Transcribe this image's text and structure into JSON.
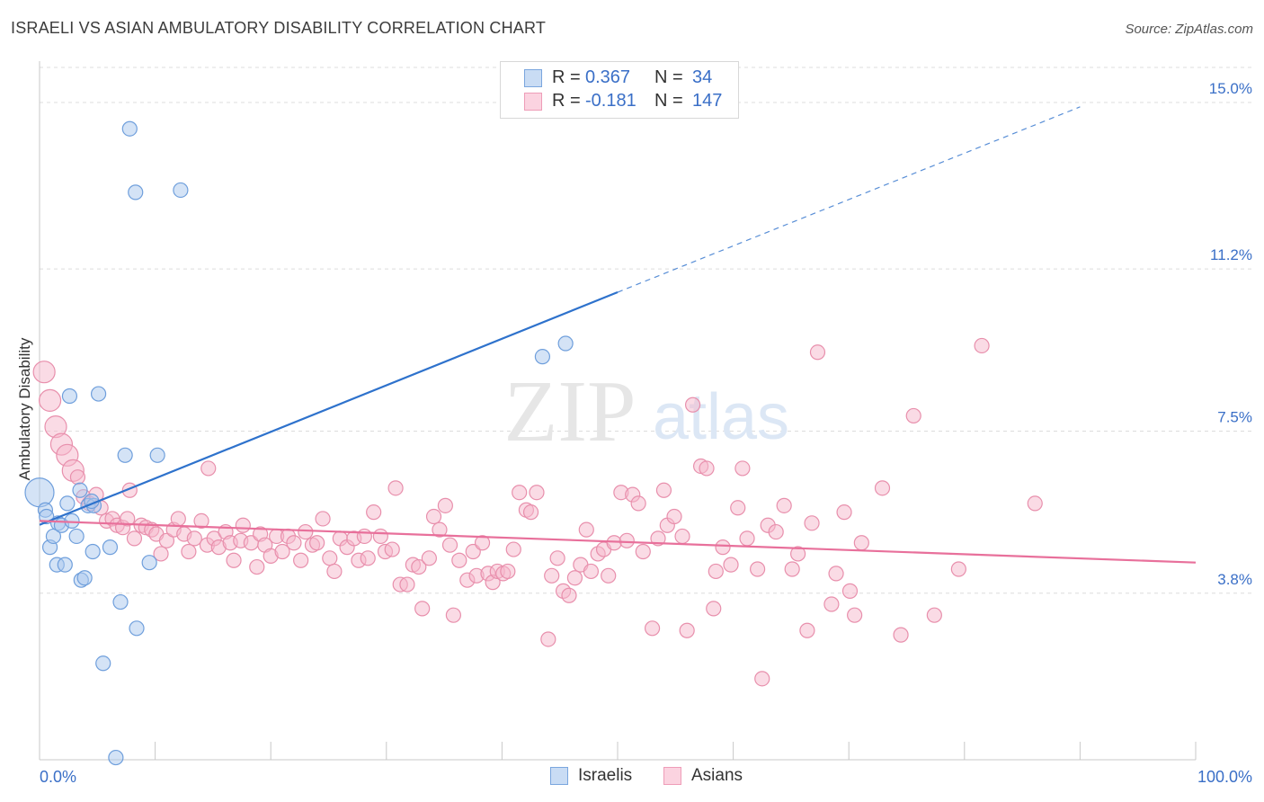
{
  "title": "ISRAELI VS ASIAN AMBULATORY DISABILITY CORRELATION CHART",
  "source": "Source: ZipAtlas.com",
  "watermark": {
    "zip": "ZIP",
    "atlas": "atlas"
  },
  "colors": {
    "israeli_fill": "#aac8ee",
    "israeli_stroke": "#6f9fdc",
    "israeli_line": "#2e72cc",
    "asian_fill": "#f5b7cb",
    "asian_stroke": "#e88fac",
    "asian_line": "#e8709b",
    "axis_value_text": "#3a6fc7",
    "grid": "#dcdcdc"
  },
  "stats": {
    "israelis": {
      "r_label": "R =",
      "r_value": "0.367",
      "n_label": "N =",
      "n_value": "34"
    },
    "asians": {
      "r_label": "R =",
      "r_value": "-0.181",
      "n_label": "N =",
      "n_value": "147"
    }
  },
  "legend": {
    "israelis": "Israelis",
    "asians": "Asians",
    "placement": "bottom-center"
  },
  "chart_data": {
    "type": "scatter",
    "title": "ISRAELI VS ASIAN AMBULATORY DISABILITY CORRELATION CHART",
    "xlabel": "",
    "ylabel": "Ambulatory Disability",
    "xlim": [
      0,
      100
    ],
    "ylim": [
      0.0,
      15.8
    ],
    "x_tick_labels": [
      "0.0%",
      "100.0%"
    ],
    "y_ticks": [
      3.8,
      7.5,
      11.2,
      15.0
    ],
    "y_tick_labels": [
      "3.8%",
      "7.5%",
      "11.2%",
      "15.0%"
    ],
    "grid": "horizontal dashed",
    "series": [
      {
        "name": "Israelis",
        "color": "#aac8ee",
        "trend": {
          "x0": 0.0,
          "y0": 5.36,
          "x1": 50.0,
          "y1": 10.67,
          "dash_to_x": 90.0,
          "dash_to_y": 14.9
        },
        "points": [
          {
            "x": 0.0,
            "y": 6.1,
            "big": true
          },
          {
            "x": 0.5,
            "y": 5.7
          },
          {
            "x": 0.6,
            "y": 5.55
          },
          {
            "x": 0.9,
            "y": 4.85
          },
          {
            "x": 1.2,
            "y": 5.1
          },
          {
            "x": 1.5,
            "y": 4.45
          },
          {
            "x": 1.6,
            "y": 5.4
          },
          {
            "x": 1.9,
            "y": 5.35
          },
          {
            "x": 2.2,
            "y": 4.45
          },
          {
            "x": 2.4,
            "y": 5.85
          },
          {
            "x": 2.6,
            "y": 8.3
          },
          {
            "x": 2.8,
            "y": 5.45
          },
          {
            "x": 3.2,
            "y": 5.1
          },
          {
            "x": 3.5,
            "y": 6.15
          },
          {
            "x": 3.6,
            "y": 4.1
          },
          {
            "x": 3.9,
            "y": 4.15
          },
          {
            "x": 4.2,
            "y": 5.8
          },
          {
            "x": 4.6,
            "y": 4.75
          },
          {
            "x": 4.7,
            "y": 5.8
          },
          {
            "x": 5.1,
            "y": 8.35
          },
          {
            "x": 5.5,
            "y": 2.2
          },
          {
            "x": 6.1,
            "y": 4.85
          },
          {
            "x": 6.6,
            "y": 0.05
          },
          {
            "x": 7.0,
            "y": 3.6
          },
          {
            "x": 7.4,
            "y": 6.95
          },
          {
            "x": 7.8,
            "y": 14.4
          },
          {
            "x": 8.3,
            "y": 12.95
          },
          {
            "x": 8.4,
            "y": 3.0
          },
          {
            "x": 9.5,
            "y": 4.5
          },
          {
            "x": 10.2,
            "y": 6.95
          },
          {
            "x": 12.2,
            "y": 13.0
          },
          {
            "x": 43.5,
            "y": 9.2
          },
          {
            "x": 45.5,
            "y": 9.5
          },
          {
            "x": 4.5,
            "y": 5.9
          }
        ]
      },
      {
        "name": "Asians",
        "color": "#f5b7cb",
        "trend": {
          "x0": 0.0,
          "y0": 5.45,
          "x1": 100.0,
          "y1": 4.5
        },
        "points": [
          {
            "x": 0.4,
            "y": 8.85,
            "big": true
          },
          {
            "x": 0.9,
            "y": 8.2,
            "big": true
          },
          {
            "x": 1.4,
            "y": 7.6,
            "big": true
          },
          {
            "x": 1.9,
            "y": 7.2,
            "big": true
          },
          {
            "x": 2.4,
            "y": 6.95,
            "big": true
          },
          {
            "x": 2.9,
            "y": 6.6,
            "big": true
          },
          {
            "x": 3.3,
            "y": 6.45
          },
          {
            "x": 3.8,
            "y": 6.0
          },
          {
            "x": 4.3,
            "y": 5.85
          },
          {
            "x": 4.9,
            "y": 6.05
          },
          {
            "x": 5.3,
            "y": 5.75
          },
          {
            "x": 5.8,
            "y": 5.45
          },
          {
            "x": 6.3,
            "y": 5.5
          },
          {
            "x": 6.7,
            "y": 5.35
          },
          {
            "x": 7.2,
            "y": 5.3
          },
          {
            "x": 7.6,
            "y": 5.5
          },
          {
            "x": 7.8,
            "y": 6.15
          },
          {
            "x": 8.2,
            "y": 5.05
          },
          {
            "x": 8.8,
            "y": 5.35
          },
          {
            "x": 9.2,
            "y": 5.3
          },
          {
            "x": 9.7,
            "y": 5.25
          },
          {
            "x": 10.1,
            "y": 5.15
          },
          {
            "x": 10.5,
            "y": 4.7
          },
          {
            "x": 11.0,
            "y": 5.0
          },
          {
            "x": 11.6,
            "y": 5.25
          },
          {
            "x": 12.0,
            "y": 5.5
          },
          {
            "x": 12.5,
            "y": 5.15
          },
          {
            "x": 12.9,
            "y": 4.75
          },
          {
            "x": 13.4,
            "y": 5.05
          },
          {
            "x": 14.0,
            "y": 5.45
          },
          {
            "x": 14.5,
            "y": 4.9
          },
          {
            "x": 14.6,
            "y": 6.65
          },
          {
            "x": 15.1,
            "y": 5.05
          },
          {
            "x": 15.5,
            "y": 4.85
          },
          {
            "x": 16.1,
            "y": 5.2
          },
          {
            "x": 16.5,
            "y": 4.95
          },
          {
            "x": 16.8,
            "y": 4.55
          },
          {
            "x": 17.4,
            "y": 5.0
          },
          {
            "x": 17.6,
            "y": 5.35
          },
          {
            "x": 18.3,
            "y": 4.95
          },
          {
            "x": 18.8,
            "y": 4.4
          },
          {
            "x": 19.1,
            "y": 5.15
          },
          {
            "x": 19.5,
            "y": 4.9
          },
          {
            "x": 20.0,
            "y": 4.65
          },
          {
            "x": 20.5,
            "y": 5.1
          },
          {
            "x": 21.0,
            "y": 4.75
          },
          {
            "x": 21.5,
            "y": 5.1
          },
          {
            "x": 22.0,
            "y": 4.95
          },
          {
            "x": 22.6,
            "y": 4.55
          },
          {
            "x": 23.0,
            "y": 5.2
          },
          {
            "x": 23.6,
            "y": 4.9
          },
          {
            "x": 24.0,
            "y": 4.95
          },
          {
            "x": 24.5,
            "y": 5.5
          },
          {
            "x": 25.1,
            "y": 4.6
          },
          {
            "x": 25.5,
            "y": 4.3
          },
          {
            "x": 26.0,
            "y": 5.05
          },
          {
            "x": 26.6,
            "y": 4.85
          },
          {
            "x": 27.2,
            "y": 5.05
          },
          {
            "x": 27.6,
            "y": 4.55
          },
          {
            "x": 28.1,
            "y": 5.1
          },
          {
            "x": 28.4,
            "y": 4.6
          },
          {
            "x": 28.9,
            "y": 5.65
          },
          {
            "x": 29.5,
            "y": 5.1
          },
          {
            "x": 29.9,
            "y": 4.75
          },
          {
            "x": 30.5,
            "y": 4.8
          },
          {
            "x": 30.8,
            "y": 6.2
          },
          {
            "x": 31.2,
            "y": 4.0
          },
          {
            "x": 31.8,
            "y": 4.0
          },
          {
            "x": 32.3,
            "y": 4.45
          },
          {
            "x": 32.8,
            "y": 4.4
          },
          {
            "x": 33.1,
            "y": 3.45
          },
          {
            "x": 33.7,
            "y": 4.6
          },
          {
            "x": 34.1,
            "y": 5.55
          },
          {
            "x": 34.6,
            "y": 5.25
          },
          {
            "x": 35.1,
            "y": 5.8
          },
          {
            "x": 35.5,
            "y": 4.9
          },
          {
            "x": 35.8,
            "y": 3.3
          },
          {
            "x": 36.3,
            "y": 4.55
          },
          {
            "x": 37.0,
            "y": 4.1
          },
          {
            "x": 37.5,
            "y": 4.75
          },
          {
            "x": 37.8,
            "y": 4.2
          },
          {
            "x": 38.3,
            "y": 4.95
          },
          {
            "x": 38.8,
            "y": 4.25
          },
          {
            "x": 39.2,
            "y": 4.05
          },
          {
            "x": 39.6,
            "y": 4.3
          },
          {
            "x": 40.1,
            "y": 4.25
          },
          {
            "x": 40.5,
            "y": 4.3
          },
          {
            "x": 41.0,
            "y": 4.8
          },
          {
            "x": 41.5,
            "y": 6.1
          },
          {
            "x": 42.1,
            "y": 5.7
          },
          {
            "x": 42.5,
            "y": 5.65
          },
          {
            "x": 43.0,
            "y": 6.1
          },
          {
            "x": 44.0,
            "y": 2.75
          },
          {
            "x": 44.3,
            "y": 4.2
          },
          {
            "x": 44.8,
            "y": 4.6
          },
          {
            "x": 45.3,
            "y": 3.85
          },
          {
            "x": 45.8,
            "y": 3.75
          },
          {
            "x": 46.3,
            "y": 4.15
          },
          {
            "x": 46.8,
            "y": 4.45
          },
          {
            "x": 47.3,
            "y": 5.25
          },
          {
            "x": 47.7,
            "y": 4.3
          },
          {
            "x": 48.3,
            "y": 4.7
          },
          {
            "x": 48.8,
            "y": 4.8
          },
          {
            "x": 49.2,
            "y": 4.2
          },
          {
            "x": 49.7,
            "y": 4.95
          },
          {
            "x": 50.3,
            "y": 6.1
          },
          {
            "x": 50.8,
            "y": 5.0
          },
          {
            "x": 51.3,
            "y": 6.05
          },
          {
            "x": 51.8,
            "y": 5.85
          },
          {
            "x": 52.2,
            "y": 4.75
          },
          {
            "x": 53.0,
            "y": 3.0
          },
          {
            "x": 53.5,
            "y": 5.05
          },
          {
            "x": 54.0,
            "y": 6.15
          },
          {
            "x": 54.3,
            "y": 5.35
          },
          {
            "x": 54.9,
            "y": 5.55
          },
          {
            "x": 55.6,
            "y": 5.1
          },
          {
            "x": 56.0,
            "y": 2.95
          },
          {
            "x": 56.5,
            "y": 8.1
          },
          {
            "x": 57.2,
            "y": 6.7
          },
          {
            "x": 57.7,
            "y": 6.65
          },
          {
            "x": 58.3,
            "y": 3.45
          },
          {
            "x": 58.5,
            "y": 4.3
          },
          {
            "x": 59.1,
            "y": 4.85
          },
          {
            "x": 59.8,
            "y": 4.45
          },
          {
            "x": 60.4,
            "y": 5.75
          },
          {
            "x": 60.8,
            "y": 6.65
          },
          {
            "x": 61.2,
            "y": 5.05
          },
          {
            "x": 62.1,
            "y": 4.35
          },
          {
            "x": 62.5,
            "y": 1.85
          },
          {
            "x": 63.0,
            "y": 5.35
          },
          {
            "x": 63.7,
            "y": 5.2
          },
          {
            "x": 64.4,
            "y": 5.8
          },
          {
            "x": 65.1,
            "y": 4.35
          },
          {
            "x": 65.6,
            "y": 4.7
          },
          {
            "x": 66.4,
            "y": 2.95
          },
          {
            "x": 66.8,
            "y": 5.4
          },
          {
            "x": 67.3,
            "y": 9.3
          },
          {
            "x": 68.5,
            "y": 3.55
          },
          {
            "x": 68.9,
            "y": 4.25
          },
          {
            "x": 69.6,
            "y": 5.65
          },
          {
            "x": 70.1,
            "y": 3.85
          },
          {
            "x": 70.5,
            "y": 3.3
          },
          {
            "x": 71.1,
            "y": 4.95
          },
          {
            "x": 72.9,
            "y": 6.2
          },
          {
            "x": 74.5,
            "y": 2.85
          },
          {
            "x": 75.6,
            "y": 7.85
          },
          {
            "x": 77.4,
            "y": 3.3
          },
          {
            "x": 79.5,
            "y": 4.35
          },
          {
            "x": 81.5,
            "y": 9.45
          },
          {
            "x": 86.1,
            "y": 5.85
          }
        ]
      }
    ]
  }
}
